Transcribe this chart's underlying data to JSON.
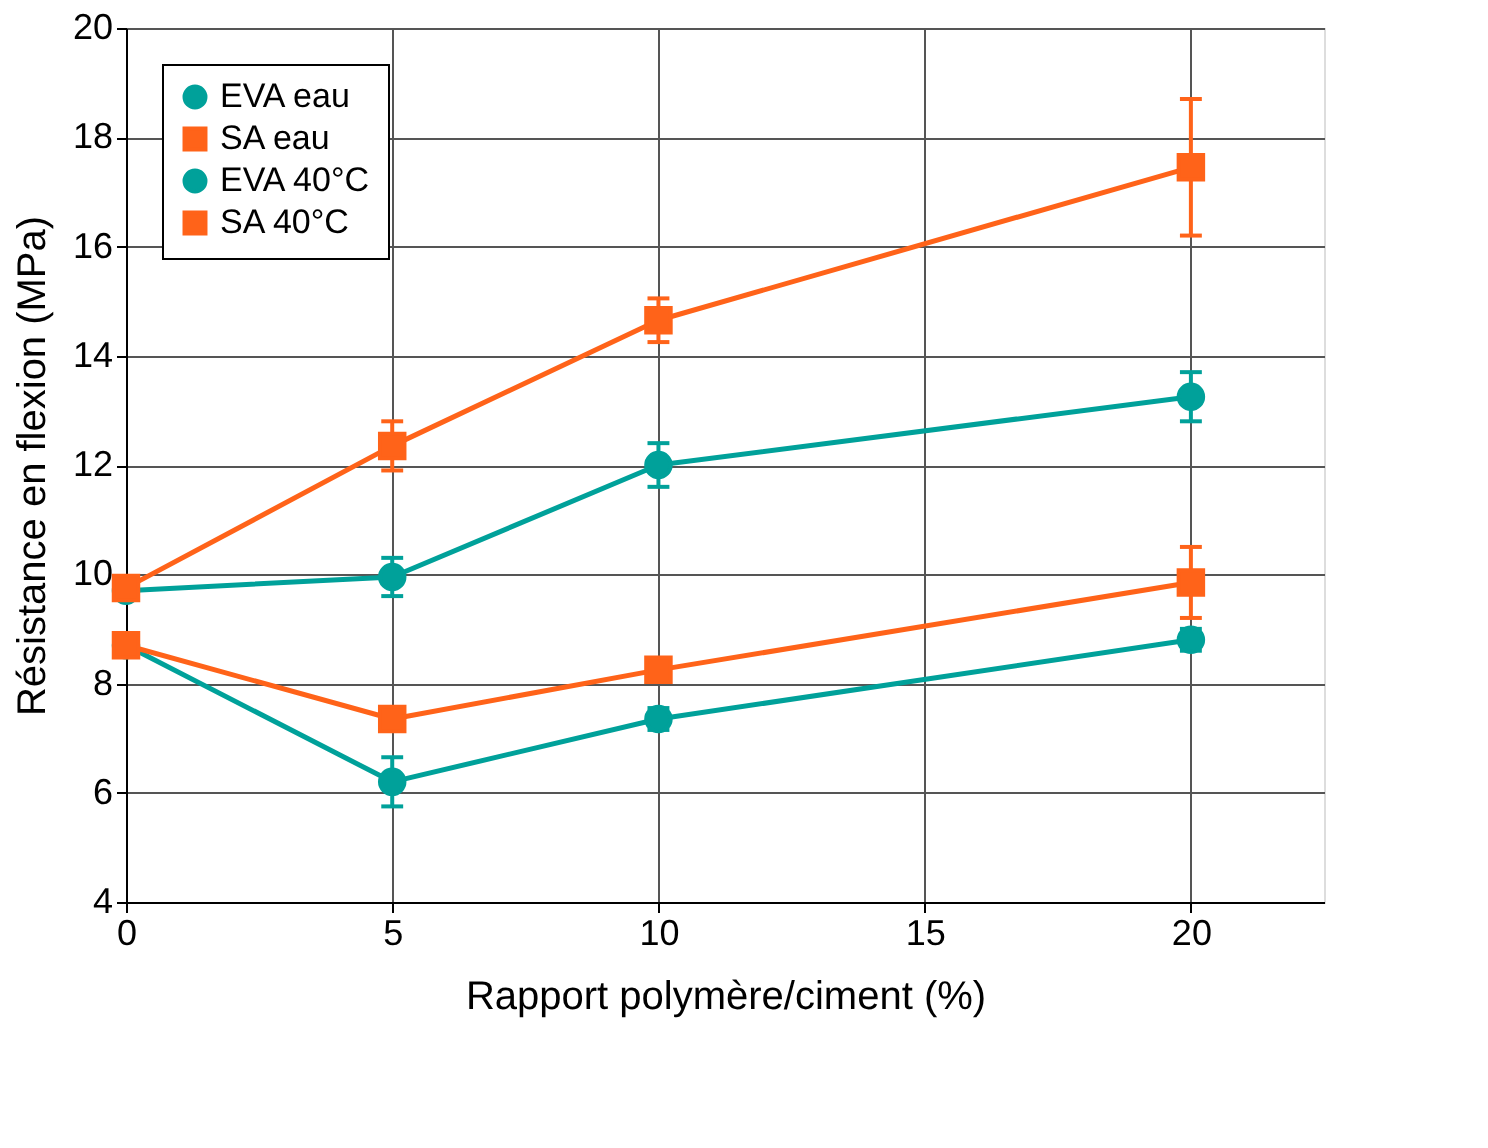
{
  "chart_data": {
    "type": "line",
    "xlabel": "Rapport polymère/ciment (%)",
    "ylabel": "Résistance en flexion (MPa)",
    "x": [
      0,
      5,
      10,
      20
    ],
    "xlim": [
      0,
      22.5
    ],
    "xticks": [
      0,
      5,
      10,
      15,
      20
    ],
    "ylim": [
      4,
      20
    ],
    "yticks": [
      4,
      6,
      8,
      10,
      12,
      14,
      16,
      18,
      20
    ],
    "grid": true,
    "legend": "top left",
    "line_style": "solid",
    "series": [
      {
        "name": "EVA eau",
        "color": "#00a19a",
        "marker": "circle",
        "values": [
          8.7,
          6.2,
          7.35,
          8.8
        ],
        "errors": [
          null,
          0.45,
          0.2,
          0.2
        ]
      },
      {
        "name": "SA eau",
        "color": "#ff6319",
        "marker": "square",
        "values": [
          8.7,
          7.35,
          8.25,
          9.85
        ],
        "errors": [
          null,
          0.2,
          null,
          0.65
        ]
      },
      {
        "name": "EVA 40°C",
        "color": "#00a19a",
        "marker": "circle",
        "values": [
          9.7,
          9.95,
          12.0,
          13.25
        ],
        "errors": [
          null,
          0.35,
          0.4,
          0.45
        ]
      },
      {
        "name": "SA 40°C",
        "color": "#ff6319",
        "marker": "square",
        "values": [
          9.75,
          12.35,
          14.65,
          17.45
        ],
        "errors": [
          null,
          0.45,
          0.4,
          1.25
        ]
      }
    ]
  }
}
